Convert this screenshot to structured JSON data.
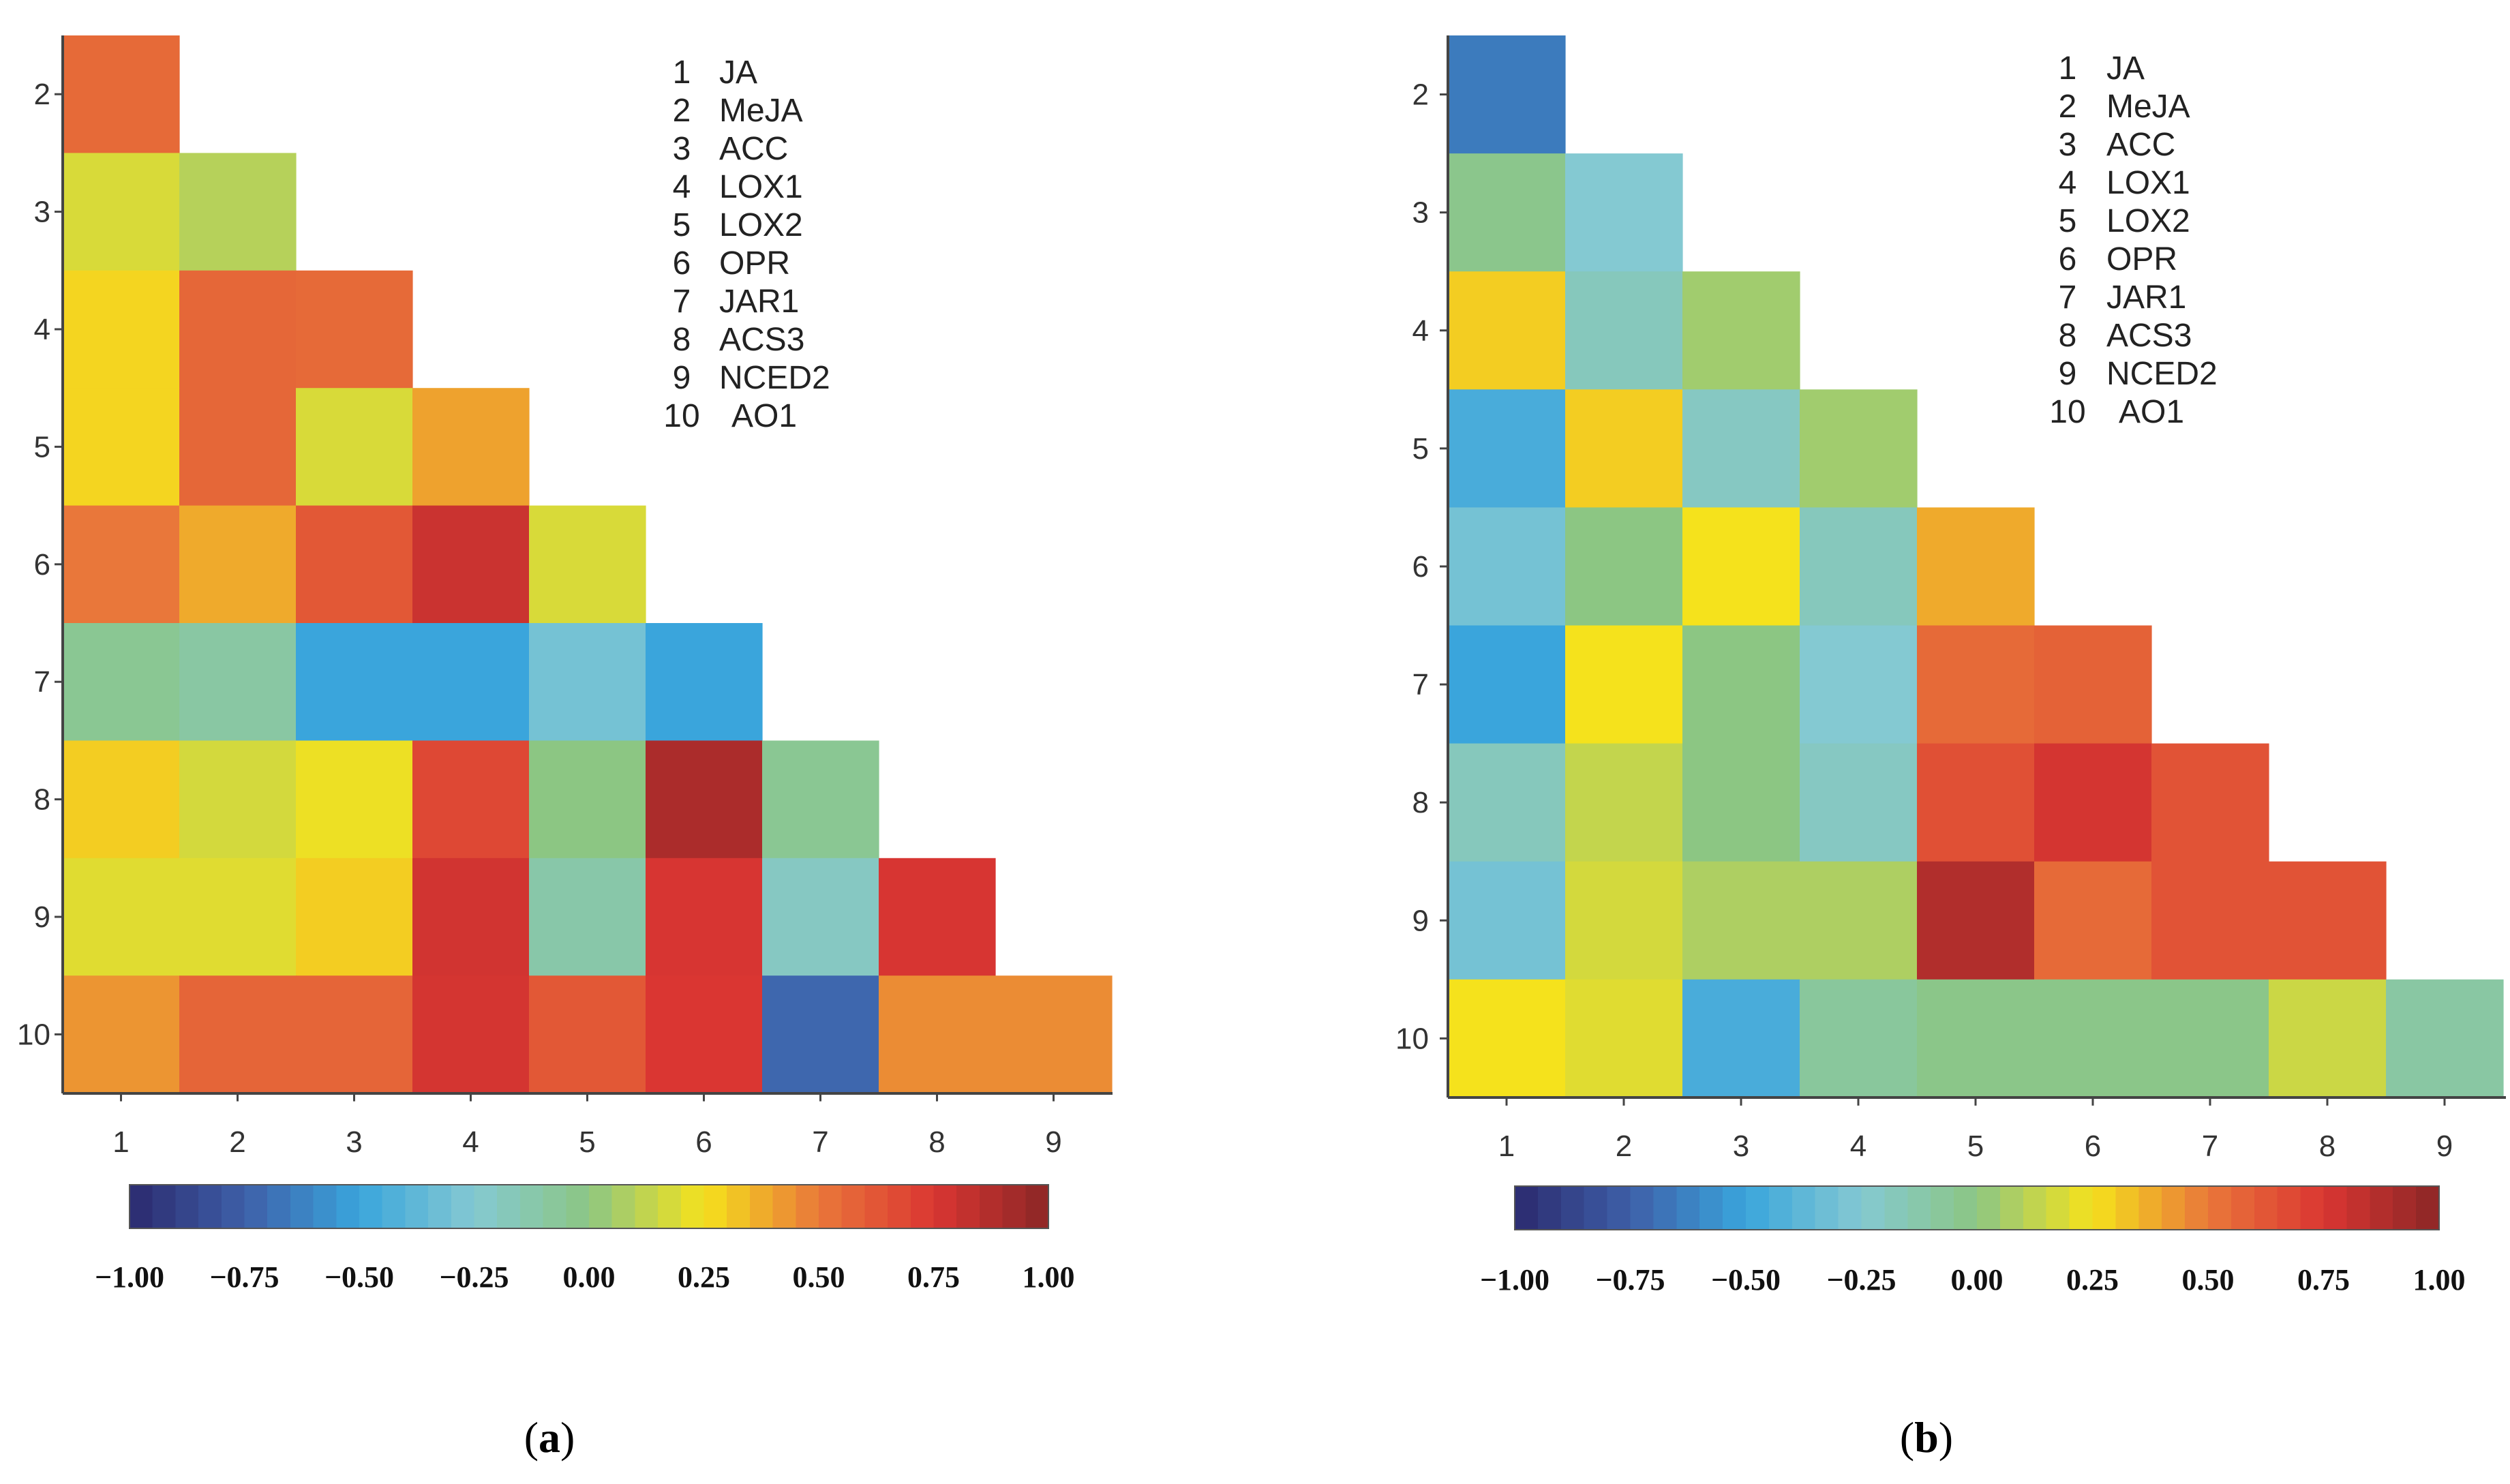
{
  "colorscale": {
    "stops": [
      [
        -1.0,
        "#2b2a6e"
      ],
      [
        -0.75,
        "#3e5fa8"
      ],
      [
        -0.5,
        "#3aa5dc"
      ],
      [
        -0.25,
        "#84c9d2"
      ],
      [
        0.0,
        "#8cc683"
      ],
      [
        0.25,
        "#f5e21c"
      ],
      [
        0.5,
        "#e9773a"
      ],
      [
        0.75,
        "#da3632"
      ],
      [
        1.0,
        "#8b2626"
      ]
    ]
  },
  "chart_data": [
    {
      "type": "heatmap",
      "panel_label": "a",
      "x_tick_labels": [
        "1",
        "2",
        "3",
        "4",
        "5",
        "6",
        "7",
        "8",
        "9"
      ],
      "y_tick_labels": [
        "2",
        "3",
        "4",
        "5",
        "6",
        "7",
        "8",
        "9",
        "10"
      ],
      "legend": [
        "1",
        "JA",
        "2",
        "MeJA",
        "3",
        "ACC",
        "4",
        "LOX1",
        "5",
        "LOX2",
        "6",
        "OPR",
        "7",
        "JAR1",
        "8",
        "ACS3",
        "9",
        "NCED2",
        "10",
        "AO1"
      ],
      "colorbar": {
        "min": -1.0,
        "max": 1.0,
        "tick_labels": [
          "−1.00",
          "−0.75",
          "−0.50",
          "−0.25",
          "0.00",
          "0.25",
          "0.50",
          "0.75",
          "1.00"
        ]
      },
      "matrix": [
        [
          0.55
        ],
        [
          0.18,
          0.1
        ],
        [
          0.28,
          0.56,
          0.55
        ],
        [
          0.28,
          0.56,
          0.18,
          0.4
        ],
        [
          0.5,
          0.38,
          0.62,
          0.8,
          0.18
        ],
        [
          -0.05,
          -0.1,
          -0.5,
          -0.5,
          -0.3,
          -0.5
        ],
        [
          0.3,
          0.17,
          0.23,
          0.68,
          0.0,
          0.9,
          -0.05
        ],
        [
          0.2,
          0.2,
          0.3,
          0.78,
          -0.12,
          0.76,
          -0.2,
          0.76
        ],
        [
          0.43,
          0.57,
          0.57,
          0.77,
          0.62,
          0.75,
          -0.72,
          0.45,
          0.45
        ]
      ]
    },
    {
      "type": "heatmap",
      "panel_label": "b",
      "x_tick_labels": [
        "1",
        "2",
        "3",
        "4",
        "5",
        "6",
        "7",
        "8",
        "9"
      ],
      "y_tick_labels": [
        "2",
        "3",
        "4",
        "5",
        "6",
        "7",
        "8",
        "9",
        "10"
      ],
      "legend": [
        "1",
        "JA",
        "2",
        "MeJA",
        "3",
        "ACC",
        "4",
        "LOX1",
        "5",
        "LOX2",
        "6",
        "OPR",
        "7",
        "JAR1",
        "8",
        "ACS3",
        "9",
        "NCED2",
        "10",
        "AO1"
      ],
      "colorbar": {
        "min": -1.0,
        "max": 1.0,
        "tick_labels": [
          "−1.00",
          "−0.75",
          "−0.50",
          "−0.25",
          "0.00",
          "0.25",
          "0.50",
          "0.75",
          "1.00"
        ]
      },
      "matrix": [
        [
          -0.65
        ],
        [
          -0.03,
          -0.25
        ],
        [
          0.3,
          -0.18,
          0.05
        ],
        [
          -0.45,
          0.3,
          -0.2,
          0.05
        ],
        [
          -0.3,
          0.0,
          0.25,
          -0.18,
          0.38
        ],
        [
          -0.5,
          0.25,
          0.0,
          -0.25,
          0.55,
          0.58
        ],
        [
          -0.18,
          0.13,
          0.0,
          -0.2,
          0.65,
          0.77,
          0.64
        ],
        [
          -0.3,
          0.17,
          0.08,
          0.08,
          0.88,
          0.55,
          0.64,
          0.64
        ],
        [
          0.25,
          0.2,
          -0.45,
          -0.08,
          -0.02,
          -0.02,
          -0.02,
          0.15,
          -0.1
        ]
      ]
    }
  ],
  "captions": [
    {
      "open": "(",
      "letter": "a",
      "close": ")"
    },
    {
      "open": "(",
      "letter": "b",
      "close": ")"
    }
  ]
}
